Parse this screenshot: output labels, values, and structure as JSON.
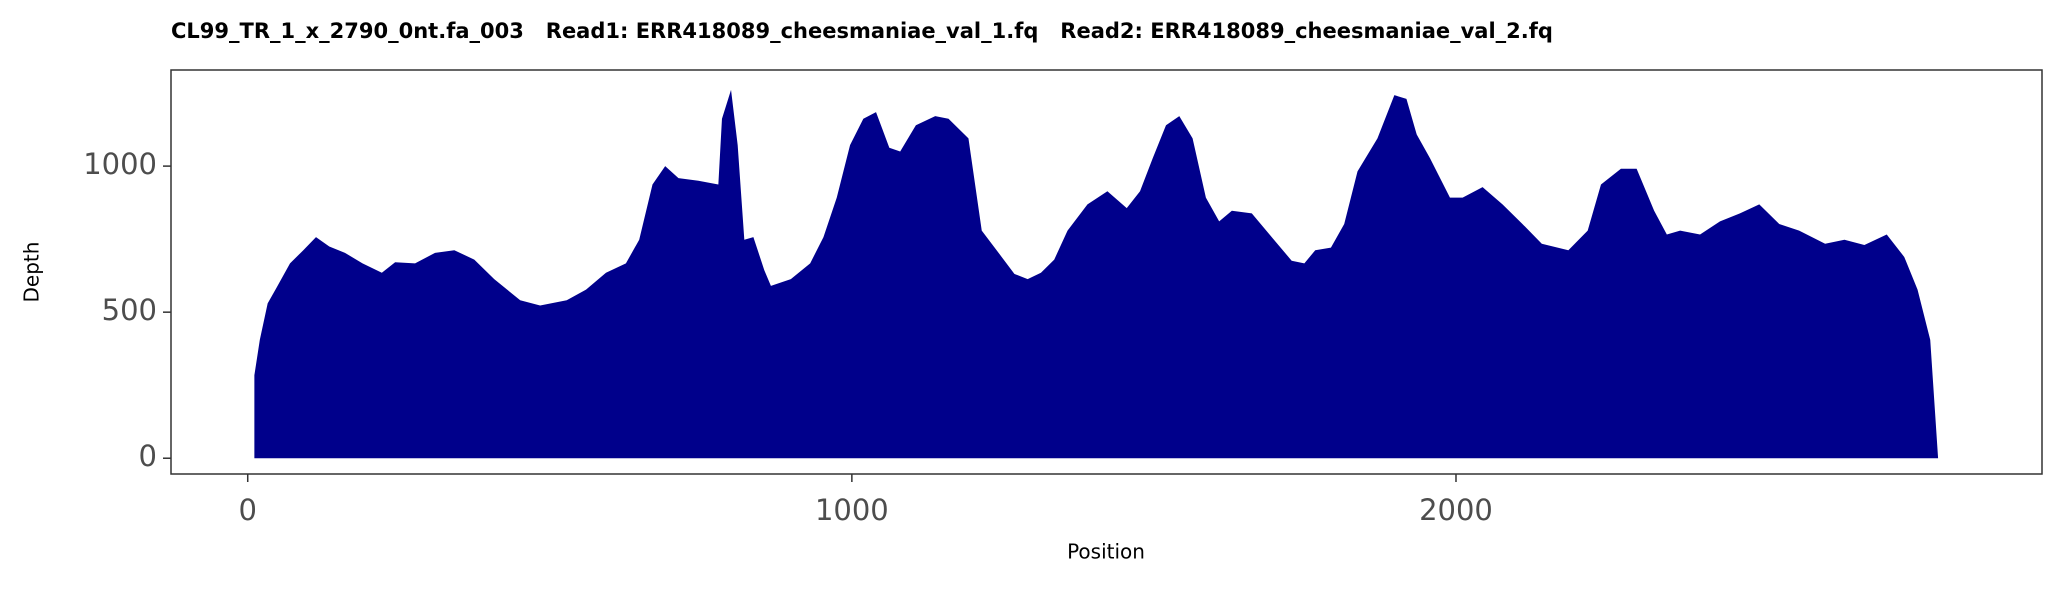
{
  "chart_data": {
    "type": "area",
    "title": "CL99_TR_1_x_2790_0nt.fa_003   Read1: ERR418089_cheesmaniae_val_1.fq   Read2: ERR418089_cheesmaniae_val_2.fq",
    "x_label": "Position",
    "y_label": "Depth",
    "color": "#00008b",
    "grid": false,
    "x": [
      11,
      20,
      33,
      48,
      70,
      92,
      113,
      135,
      161,
      190,
      222,
      244,
      277,
      310,
      342,
      375,
      408,
      451,
      484,
      528,
      560,
      593,
      626,
      648,
      670,
      691,
      713,
      746,
      779,
      785,
      800,
      811,
      822,
      837,
      855,
      866,
      899,
      931,
      953,
      975,
      997,
      1019,
      1040,
      1062,
      1080,
      1106,
      1138,
      1160,
      1193,
      1215,
      1248,
      1269,
      1291,
      1313,
      1335,
      1357,
      1390,
      1423,
      1455,
      1477,
      1498,
      1520,
      1542,
      1564,
      1586,
      1608,
      1629,
      1662,
      1695,
      1728,
      1749,
      1767,
      1793,
      1815,
      1837,
      1870,
      1898,
      1918,
      1935,
      1957,
      1990,
      2011,
      2044,
      2077,
      2110,
      2142,
      2186,
      2218,
      2240,
      2273,
      2299,
      2328,
      2349,
      2371,
      2404,
      2437,
      2470,
      2502,
      2535,
      2568,
      2611,
      2643,
      2676,
      2713,
      2742,
      2764,
      2785,
      2798
    ],
    "values": [
      284,
      405,
      530,
      585,
      667,
      712,
      757,
      725,
      703,
      667,
      635,
      671,
      667,
      703,
      712,
      680,
      613,
      541,
      523,
      541,
      577,
      635,
      667,
      748,
      937,
      1000,
      959,
      950,
      937,
      1162,
      1261,
      1072,
      748,
      757,
      644,
      590,
      613,
      667,
      757,
      892,
      1072,
      1162,
      1185,
      1063,
      1050,
      1140,
      1171,
      1162,
      1095,
      779,
      689,
      631,
      613,
      635,
      680,
      779,
      869,
      914,
      856,
      914,
      1027,
      1140,
      1171,
      1095,
      892,
      811,
      847,
      838,
      757,
      676,
      667,
      712,
      721,
      802,
      982,
      1095,
      1243,
      1230,
      1108,
      1027,
      892,
      892,
      928,
      869,
      802,
      734,
      712,
      779,
      937,
      991,
      991,
      847,
      766,
      779,
      766,
      811,
      838,
      869,
      802,
      779,
      734,
      748,
      730,
      766,
      689,
      577,
      405,
      0
    ],
    "xlim": [
      -127,
      2970
    ],
    "ylim": [
      -54,
      1329
    ],
    "xticks": [
      0,
      1000,
      2000
    ],
    "yticks": [
      0,
      500,
      1000
    ]
  }
}
